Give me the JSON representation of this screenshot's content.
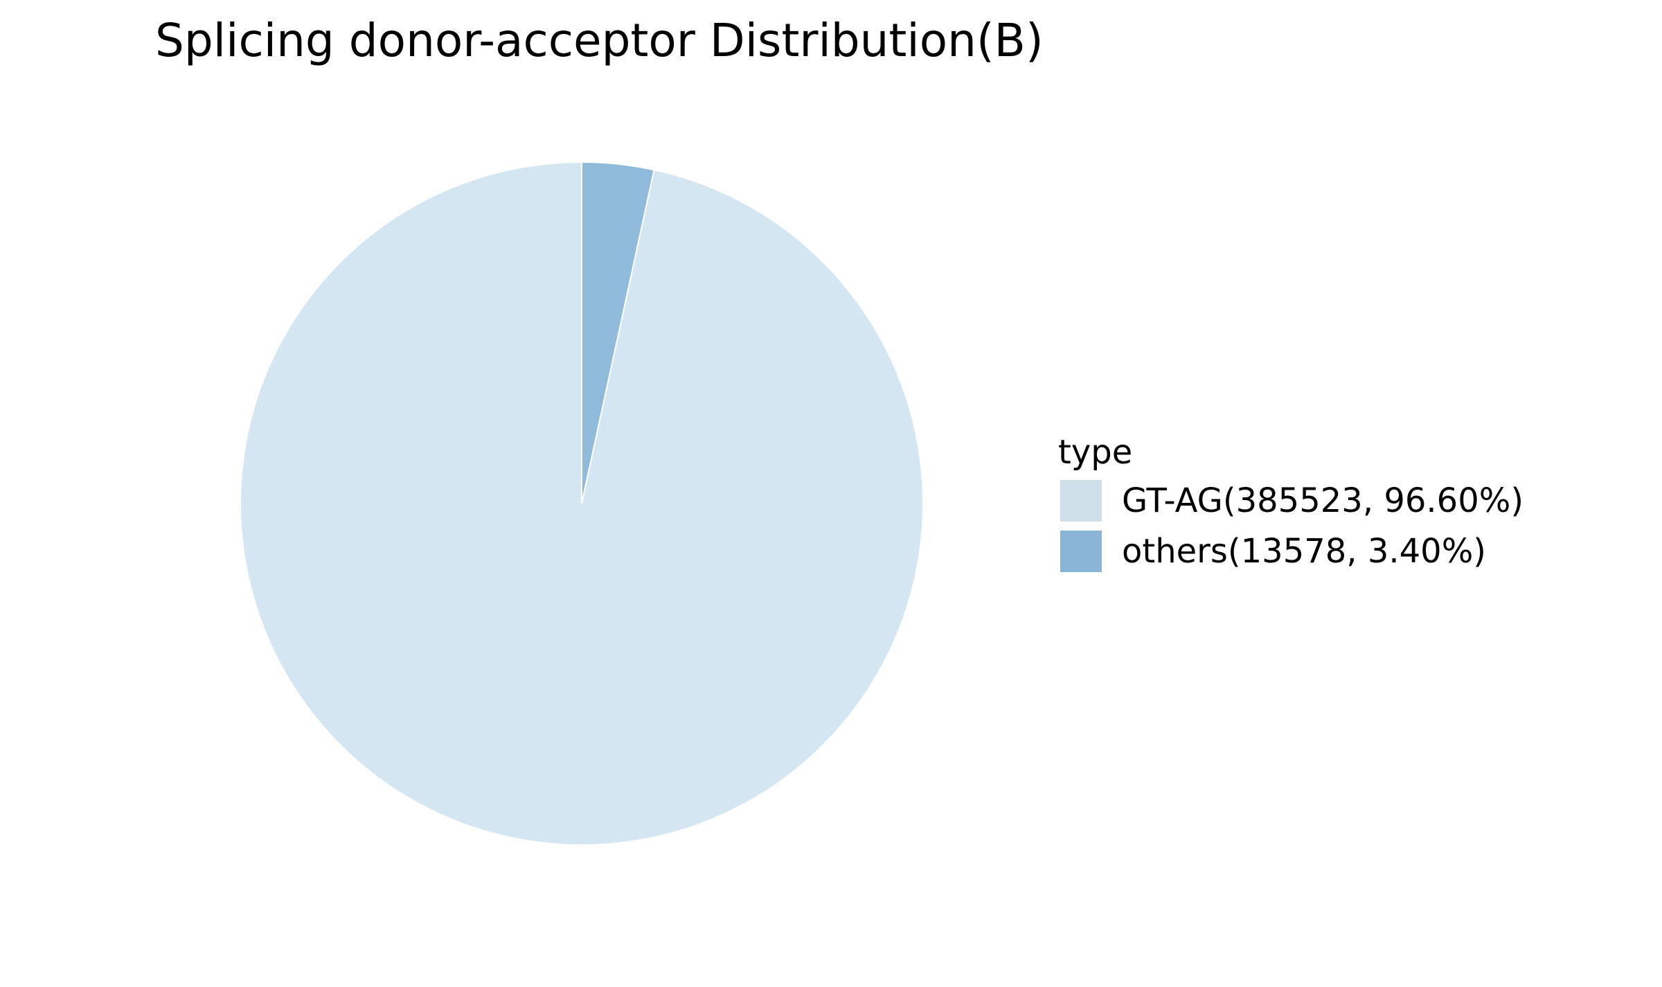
{
  "chart_data": {
    "type": "pie",
    "title": "Splicing donor-acceptor Distribution(B)",
    "legend_title": "type",
    "legend_position": "right",
    "start_angle": "top",
    "direction": "clockwise",
    "slices": [
      {
        "label": "GT-AG(385523, 96.60%)",
        "category": "GT-AG",
        "value": 385523,
        "percent": 96.6,
        "color": "#d3e6f1"
      },
      {
        "label": "others(13578, 3.40%)",
        "category": "others",
        "value": 13578,
        "percent": 3.4,
        "color": "#8fbad9"
      }
    ],
    "legend_colors": [
      "#cedfea",
      "#8ab5d6"
    ]
  }
}
